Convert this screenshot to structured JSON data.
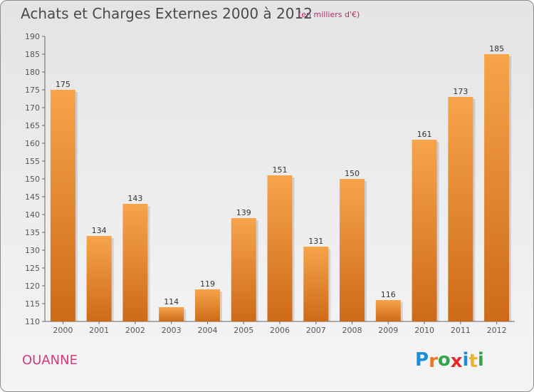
{
  "title": "Achats et Charges Externes 2000 à 2012",
  "subtitle": "(en milliers d'€)",
  "commune": "OUANNE",
  "logo": {
    "letters": [
      "P",
      "r",
      "o",
      "x",
      "i",
      "t",
      "i"
    ],
    "colors": [
      "#1a8fd6",
      "#e8762b",
      "#36a44a",
      "#e22b2b",
      "#1a8fd6",
      "#e8b52b",
      "#36a44a"
    ]
  },
  "colors": {
    "bar_top": "#f7a44b",
    "bar_bottom": "#cd6a18",
    "accent": "#d23a7a"
  },
  "chart_data": {
    "type": "bar",
    "categories": [
      "2000",
      "2001",
      "2002",
      "2003",
      "2004",
      "2005",
      "2006",
      "2007",
      "2008",
      "2009",
      "2010",
      "2011",
      "2012"
    ],
    "values": [
      175,
      134,
      143,
      114,
      119,
      139,
      151,
      131,
      150,
      116,
      161,
      173,
      185
    ],
    "title": "Achats et Charges Externes 2000 à 2012",
    "xlabel": "",
    "ylabel": "",
    "ylim": [
      110,
      190
    ],
    "yticks": [
      110,
      115,
      120,
      125,
      130,
      135,
      140,
      145,
      150,
      155,
      160,
      165,
      170,
      175,
      180,
      185,
      190
    ],
    "grid": false,
    "legend": "none"
  }
}
